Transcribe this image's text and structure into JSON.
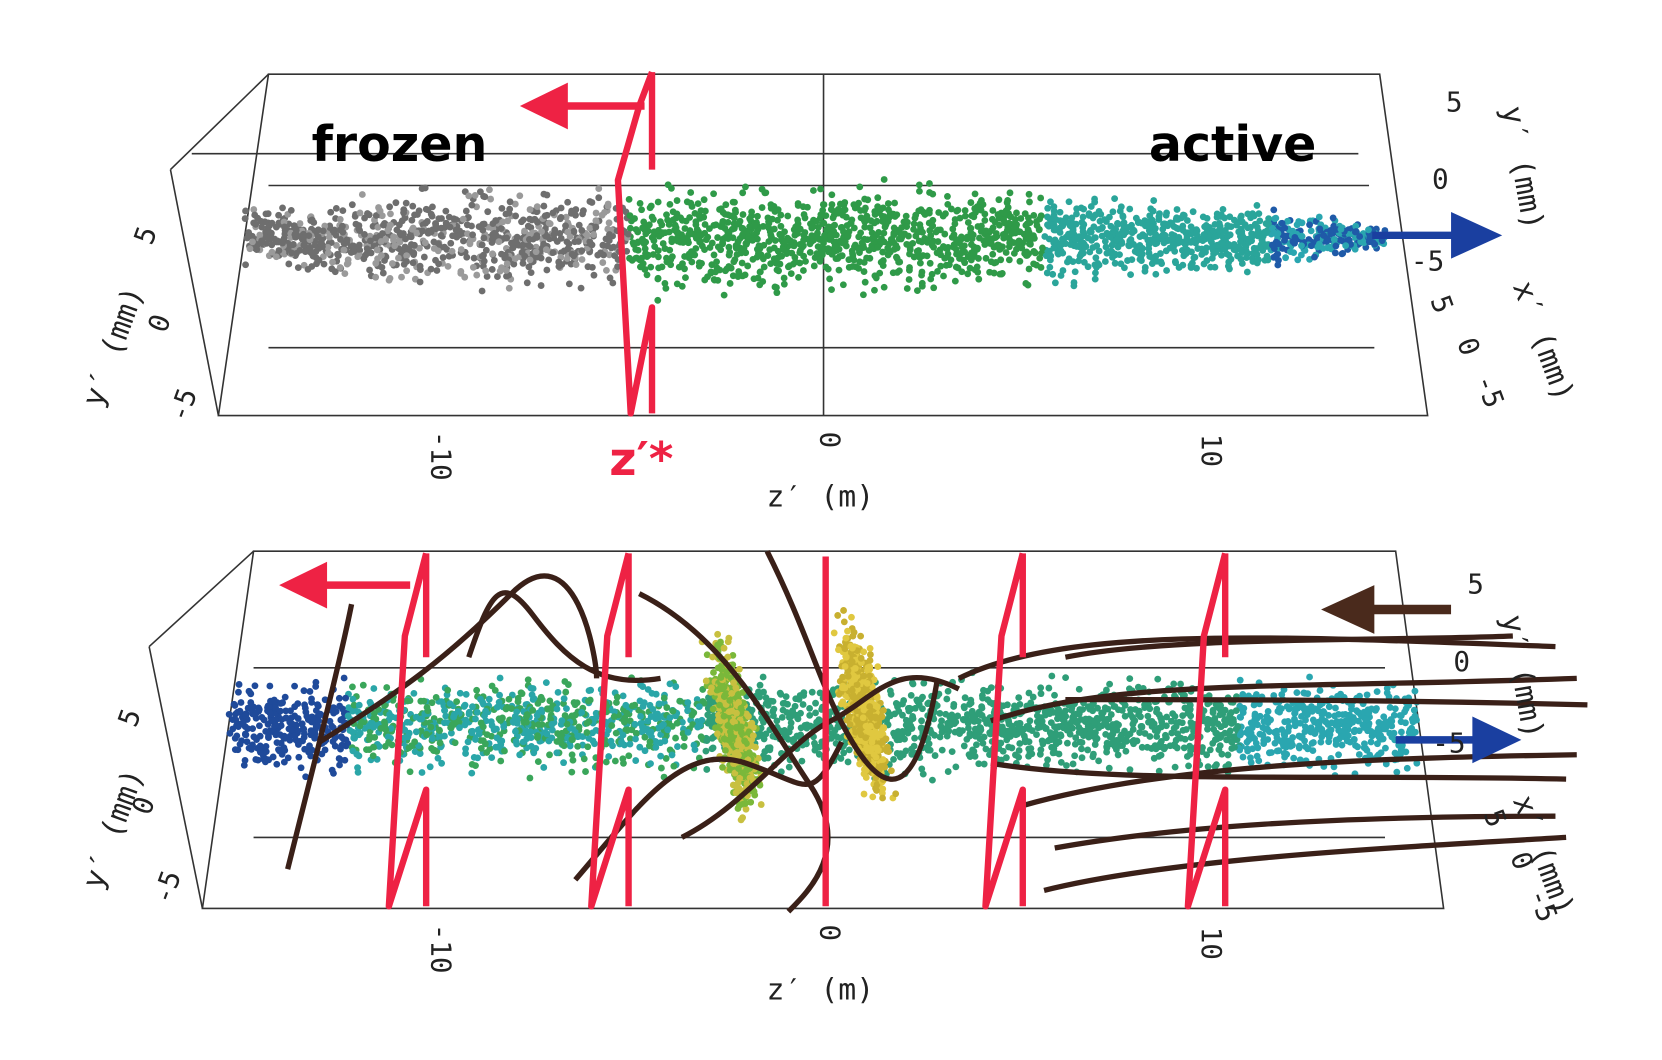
{
  "panels": [
    {
      "annotations": {
        "left": "frozen",
        "right": "active",
        "marker": "z′*"
      },
      "z_axis": {
        "label": "z′ (m)",
        "ticks": [
          "-10",
          "0",
          "10"
        ]
      },
      "y_axis": {
        "label": "y′ (mm)",
        "ticks": [
          "5",
          "0",
          "-5"
        ]
      },
      "y_axis_right": {
        "label": "y′ (mm)",
        "ticks": [
          "5",
          "0",
          "-5"
        ]
      },
      "x_axis": {
        "label": "x′ (mm)",
        "ticks": [
          "5",
          "0",
          "-5"
        ]
      }
    },
    {
      "z_axis": {
        "label": "z′ (m)",
        "ticks": [
          "-10",
          "0",
          "10"
        ]
      },
      "y_axis": {
        "label": "y′ (mm)",
        "ticks": [
          "5",
          "0",
          "-5"
        ]
      },
      "y_axis_right": {
        "label": "y′ (mm)",
        "ticks": [
          "5",
          "0",
          "-5"
        ]
      },
      "x_axis": {
        "label": "x′ (mm)",
        "ticks": [
          "5",
          "0",
          "-5"
        ]
      }
    }
  ]
}
